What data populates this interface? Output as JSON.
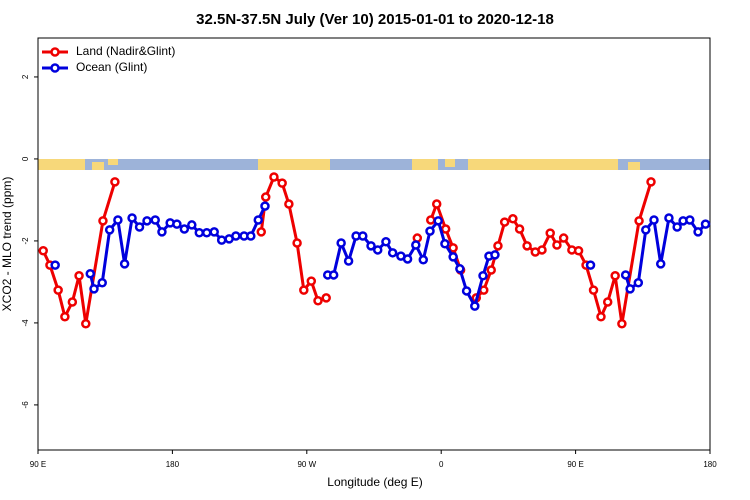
{
  "chart_data": {
    "type": "line",
    "title": "32.5N-37.5N July (Ver 10)   2015-01-01 to 2020-12-18",
    "x_label": "Longitude (deg E)",
    "y_label": "XCO2 - MLO trend (ppm)",
    "xlim": [
      90,
      540
    ],
    "ylim": [
      -7.1,
      2.95
    ],
    "xticks": [
      {
        "value": 90,
        "label": "90 E"
      },
      {
        "value": 180,
        "label": "180"
      },
      {
        "value": 270,
        "label": "90 W"
      },
      {
        "value": 360,
        "label": "0"
      },
      {
        "value": 450,
        "label": "90 E"
      },
      {
        "value": 540,
        "label": "180"
      }
    ],
    "yticks": [
      2,
      0,
      -2,
      -4,
      -6
    ],
    "legend": "top-left",
    "series": [
      {
        "name": "Land (Nadir&Glint)",
        "color": "#ee0000",
        "x": [
          93.5,
          98,
          103.5,
          108,
          113,
          117.5,
          122,
          133.5,
          141.5,
          150,
          239.5,
          242.5,
          248,
          253.5,
          258,
          263.5,
          268,
          273,
          277.5,
          283,
          300,
          344,
          348,
          353,
          357,
          363,
          368,
          373,
          378,
          383.5,
          388.5,
          393.5,
          398,
          402.5,
          408,
          412.5,
          417.5,
          423,
          427.5,
          433,
          437.5,
          442,
          447.5,
          452,
          457,
          462,
          467,
          471.5,
          476.5,
          481,
          492.5,
          500.5
        ],
        "values": [
          -2.24,
          -2.59,
          -3.2,
          -3.85,
          -3.49,
          -2.85,
          -4.02,
          -1.51,
          -0.56,
          null,
          -1.78,
          -0.93,
          -0.44,
          -0.59,
          -1.1,
          -2.05,
          -3.2,
          -2.98,
          -3.46,
          -3.39,
          null,
          -1.93,
          null,
          -1.49,
          -1.1,
          -1.71,
          -2.17,
          -2.71,
          null,
          -3.39,
          -3.2,
          -2.71,
          -2.12,
          -1.54,
          -1.46,
          -1.71,
          -2.12,
          -2.27,
          -2.22,
          -1.81,
          -2.1,
          -1.93,
          -2.22,
          -2.24,
          -2.59,
          -3.2,
          -3.85,
          -3.49,
          -2.85,
          -4.02,
          -1.51,
          -0.56
        ]
      },
      {
        "name": "Ocean (Glint)",
        "color": "#0000dd",
        "x": [
          101.5,
          115,
          125,
          127.5,
          133,
          138,
          143.5,
          148,
          153,
          158,
          163,
          168.5,
          173,
          178.5,
          183,
          188,
          193,
          198,
          203,
          208,
          213,
          218,
          222.5,
          228,
          232.5,
          237.5,
          242,
          260,
          284,
          288,
          293,
          298,
          303,
          307.5,
          313,
          317.5,
          323,
          327.5,
          333,
          337.5,
          343,
          348,
          352.5,
          358,
          362.5,
          368,
          372.5,
          377,
          382.5,
          388,
          392,
          396,
          420,
          460,
          470,
          483.5,
          486.5,
          492,
          497,
          502.5,
          507,
          512.5,
          518,
          522,
          526.5,
          532,
          537
        ],
        "values": [
          -2.59,
          null,
          -2.8,
          -3.17,
          -3.02,
          -1.73,
          -1.49,
          -2.56,
          -1.44,
          -1.66,
          -1.51,
          -1.49,
          -1.78,
          -1.56,
          -1.59,
          -1.71,
          -1.61,
          -1.8,
          -1.8,
          -1.78,
          -1.98,
          -1.95,
          -1.88,
          -1.88,
          -1.88,
          -1.49,
          -1.15,
          null,
          -2.83,
          -2.83,
          -2.05,
          -2.49,
          -1.88,
          -1.88,
          -2.12,
          -2.22,
          -2.02,
          -2.29,
          -2.37,
          -2.44,
          -2.1,
          -2.46,
          -1.76,
          -1.51,
          -2.07,
          -2.39,
          -2.68,
          -3.22,
          -3.59,
          -2.85,
          -2.37,
          -2.34,
          null,
          -2.59,
          null,
          -2.83,
          -3.17,
          -3.02,
          -1.73,
          -1.49,
          -2.56,
          -1.44,
          -1.66,
          -1.51,
          -1.49,
          -1.78,
          -1.59
        ]
      }
    ]
  }
}
